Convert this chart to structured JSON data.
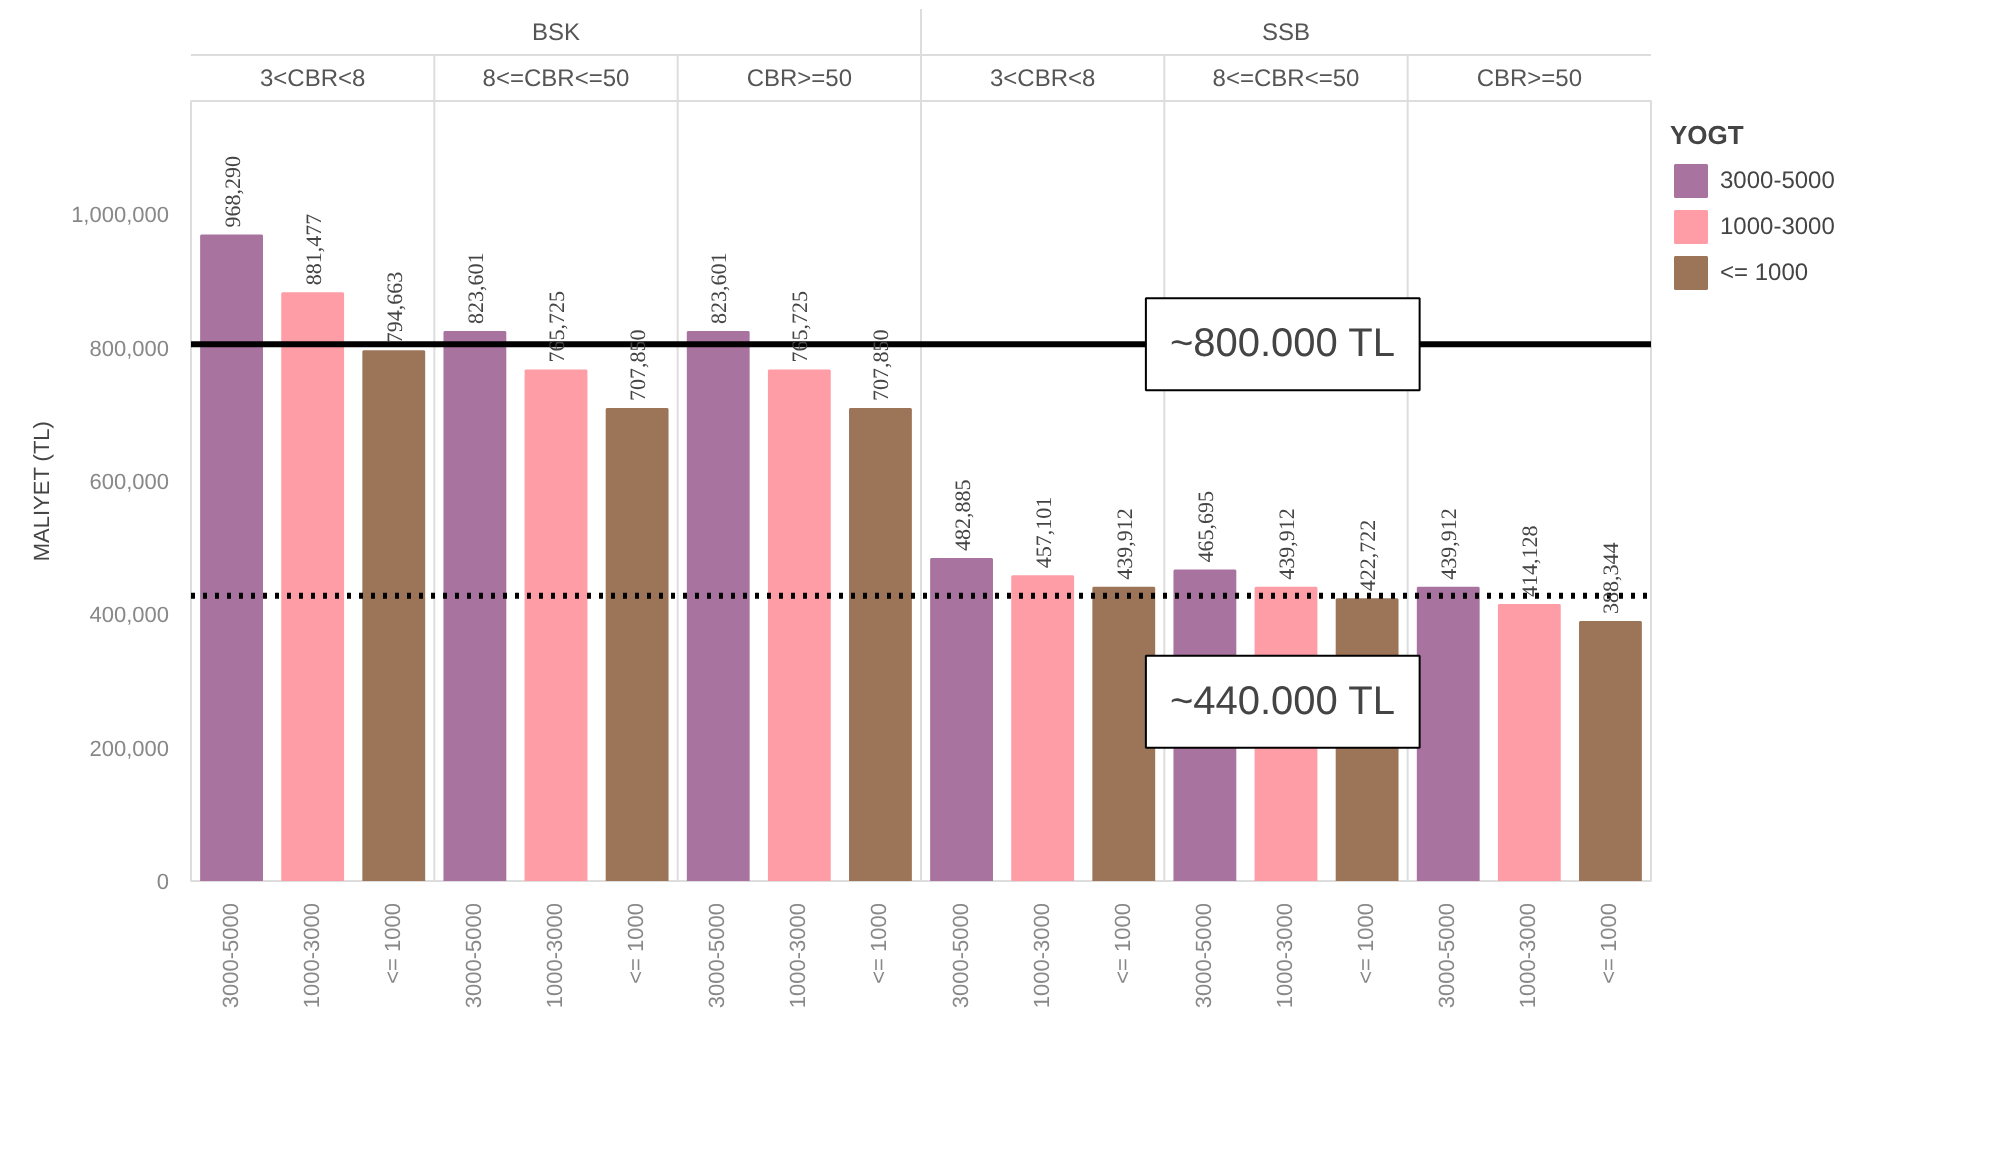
{
  "chart_data": {
    "type": "bar",
    "ylabel": "MALIYET (TL)",
    "legend_title": "YOGT",
    "legend": "right",
    "categories": [
      "3000-5000",
      "1000-3000",
      "<= 1000",
      "3000-5000",
      "1000-3000",
      "<= 1000",
      "3000-5000",
      "1000-3000",
      "<= 1000",
      "3000-5000",
      "1000-3000",
      "<= 1000",
      "3000-5000",
      "1000-3000",
      "<= 1000",
      "3000-5000",
      "1000-3000",
      "<= 1000"
    ],
    "series": [
      {
        "name": "3000-5000",
        "color": "#a8739f",
        "values": [
          968290,
          null,
          null,
          823601,
          null,
          null,
          823601,
          null,
          null,
          482885,
          null,
          null,
          465695,
          null,
          null,
          439912,
          null,
          null
        ],
        "value_labels": [
          "968,290",
          null,
          null,
          "823,601",
          null,
          null,
          "823,601",
          null,
          null,
          "482,885",
          null,
          null,
          "465,695",
          null,
          null,
          "439,912",
          null,
          null
        ]
      },
      {
        "name": "1000-3000",
        "color": "#ff9da7",
        "values": [
          null,
          881477,
          null,
          null,
          765725,
          null,
          null,
          765725,
          null,
          null,
          457101,
          null,
          null,
          439912,
          null,
          null,
          414128,
          null
        ],
        "value_labels": [
          null,
          "881,477",
          null,
          null,
          "765,725",
          null,
          null,
          "765,725",
          null,
          null,
          "457,101",
          null,
          null,
          "439,912",
          null,
          null,
          "414,128",
          null
        ]
      },
      {
        "name": "<= 1000",
        "color": "#9c7559",
        "values": [
          null,
          null,
          794663,
          null,
          null,
          707850,
          null,
          null,
          707850,
          null,
          null,
          439912,
          null,
          null,
          422722,
          null,
          null,
          388344
        ],
        "value_labels": [
          null,
          null,
          "794,663",
          null,
          null,
          "707,850",
          null,
          null,
          "707,850",
          null,
          null,
          "439,912",
          null,
          null,
          "422,722",
          null,
          null,
          "388,344"
        ]
      }
    ],
    "ylim": [
      0,
      1170000
    ],
    "yticks": [
      {
        "value": 0,
        "label": "0"
      },
      {
        "value": 200000,
        "label": "200,000"
      },
      {
        "value": 400000,
        "label": "400,000"
      },
      {
        "value": 600000,
        "label": "600,000"
      },
      {
        "value": 800000,
        "label": "800,000"
      },
      {
        "value": 1000000,
        "label": "1,000,000"
      }
    ],
    "grid": false,
    "ref_lines": [
      {
        "axis": "y",
        "value": 805000,
        "label": "~800.000 TL",
        "color": "#000000",
        "line_style": "solid"
      },
      {
        "axis": "y",
        "value": 428000,
        "label": "~440.000 TL",
        "color": "#000000",
        "line_style": "dotted"
      }
    ],
    "annotations": [
      "BSK",
      "SSB",
      "3<CBR<8",
      "8<=CBR<=50",
      "CBR>=50",
      "3<CBR<8",
      "8<=CBR<=50",
      "CBR>=50"
    ]
  }
}
